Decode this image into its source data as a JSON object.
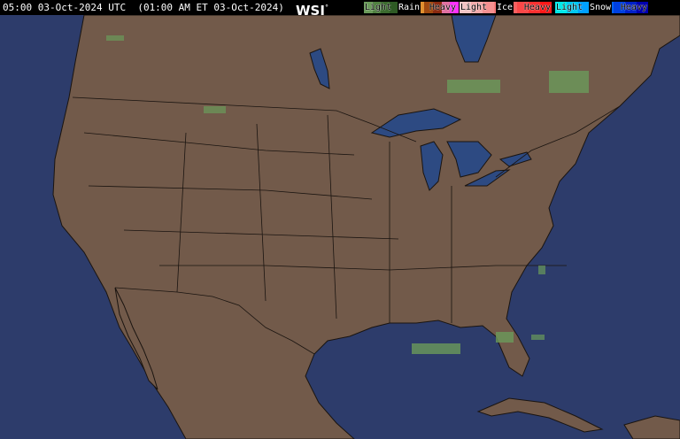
{
  "header": {
    "timestamp": "05:00 03-Oct-2024 UTC  (01:00 AM ET 03-Oct-2024)",
    "logo": "WSI"
  },
  "legend": [
    {
      "title": "Rain",
      "light": "Light",
      "heavy": "Heavy",
      "colors": [
        "#6a9a5a",
        "#4f8040",
        "#3b6a2e",
        "#2e5a24",
        "#d9d200",
        "#f0b000",
        "#e09030",
        "#a04a10",
        "#8a2a10",
        "#e070a0",
        "#ff30ff"
      ]
    },
    {
      "title": "Ice",
      "light": "Light",
      "heavy": "Heavy",
      "colors": [
        "#f2c4c4",
        "#f4aaaa",
        "#f59090",
        "#f77878",
        "#f86060",
        "#fa4848",
        "#fc3030",
        "#ff1818"
      ]
    },
    {
      "title": "Snow",
      "light": "Light",
      "heavy": "Heavy",
      "colors": [
        "#00e8e8",
        "#00c8f0",
        "#00a0ff",
        "#0080ff",
        "#0060f0",
        "#0040e0",
        "#0020c8",
        "#0000b0"
      ]
    }
  ],
  "map": {
    "ocean_color": "#2d3c6b",
    "land_color": "#725a4a",
    "border_color": "#1a1410",
    "water_body_color": "#2d4a82"
  }
}
